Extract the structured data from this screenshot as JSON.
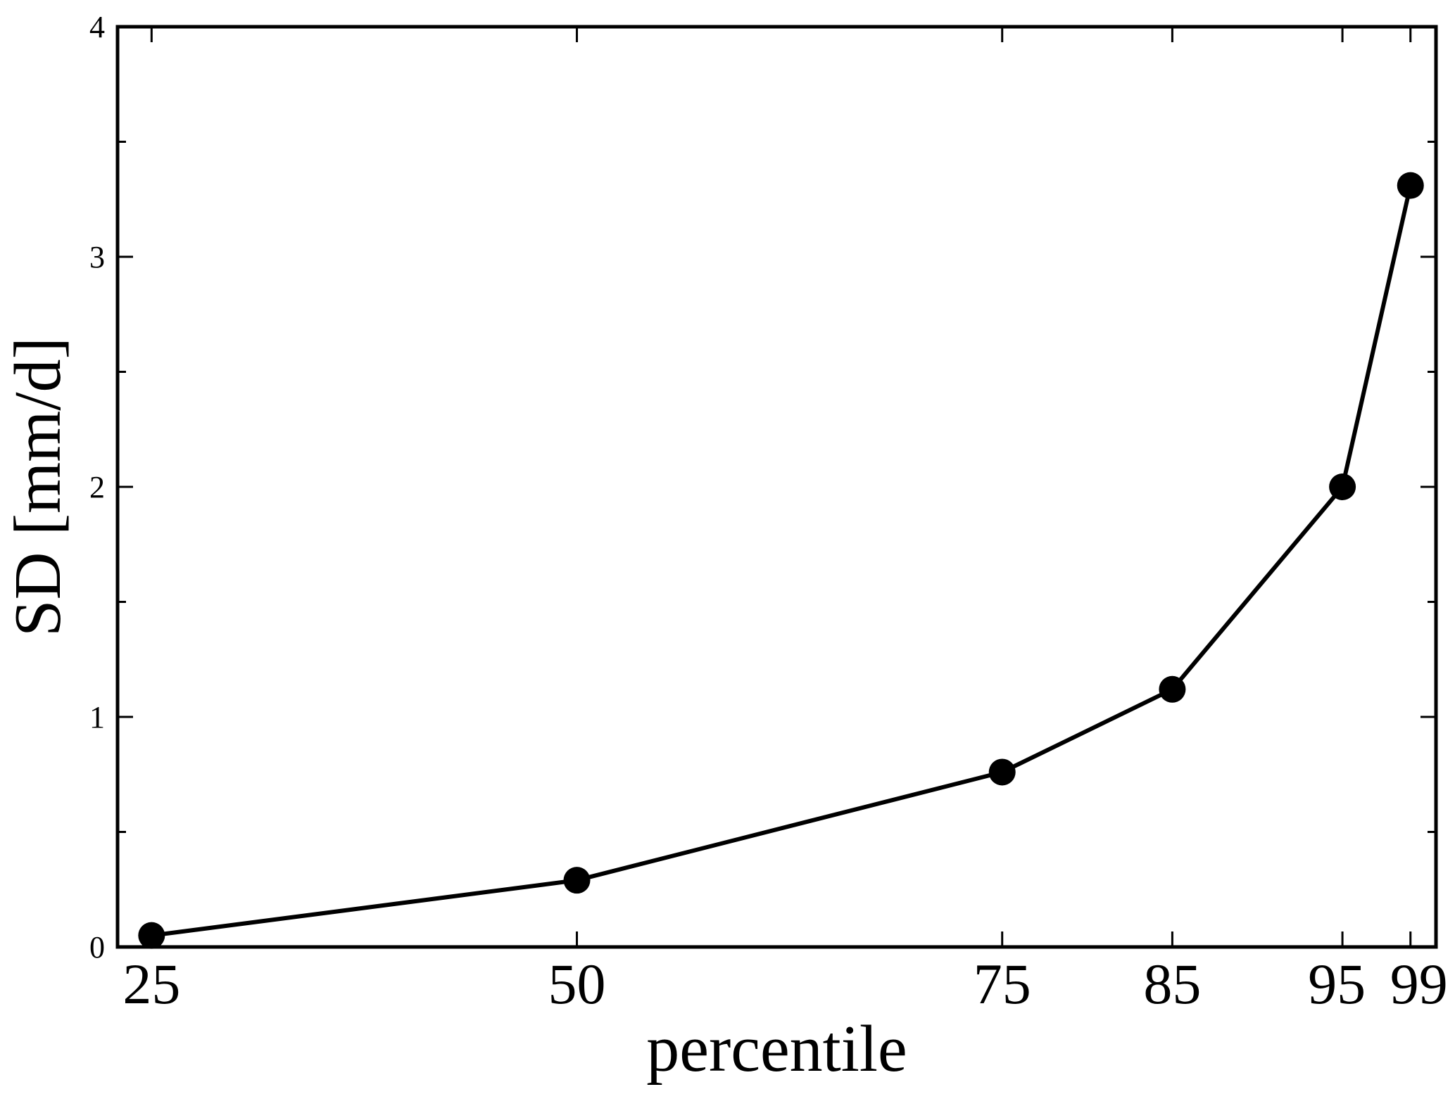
{
  "chart_data": {
    "type": "line",
    "title": "",
    "xlabel": "percentile",
    "ylabel": "SD [mm/d]",
    "xlim": [
      23,
      100.5
    ],
    "ylim": [
      0,
      4
    ],
    "x_ticks": [
      25,
      50,
      75,
      85,
      95,
      99
    ],
    "x_tick_labels": [
      "25",
      "50",
      "75",
      "85",
      "95",
      "99"
    ],
    "y_ticks": [
      0,
      1,
      2,
      3,
      4
    ],
    "y_tick_labels": [
      "0",
      "1",
      "2",
      "3",
      "4"
    ],
    "y_minor_ticks": [
      0.5,
      1.5,
      2.5,
      3.5
    ],
    "grid": false,
    "series": [
      {
        "x": [
          25,
          50,
          75,
          85,
          95,
          99
        ],
        "y": [
          0.05,
          0.29,
          0.76,
          1.12,
          2.0,
          3.31
        ],
        "color": "#000000",
        "marker": "circle"
      }
    ]
  }
}
